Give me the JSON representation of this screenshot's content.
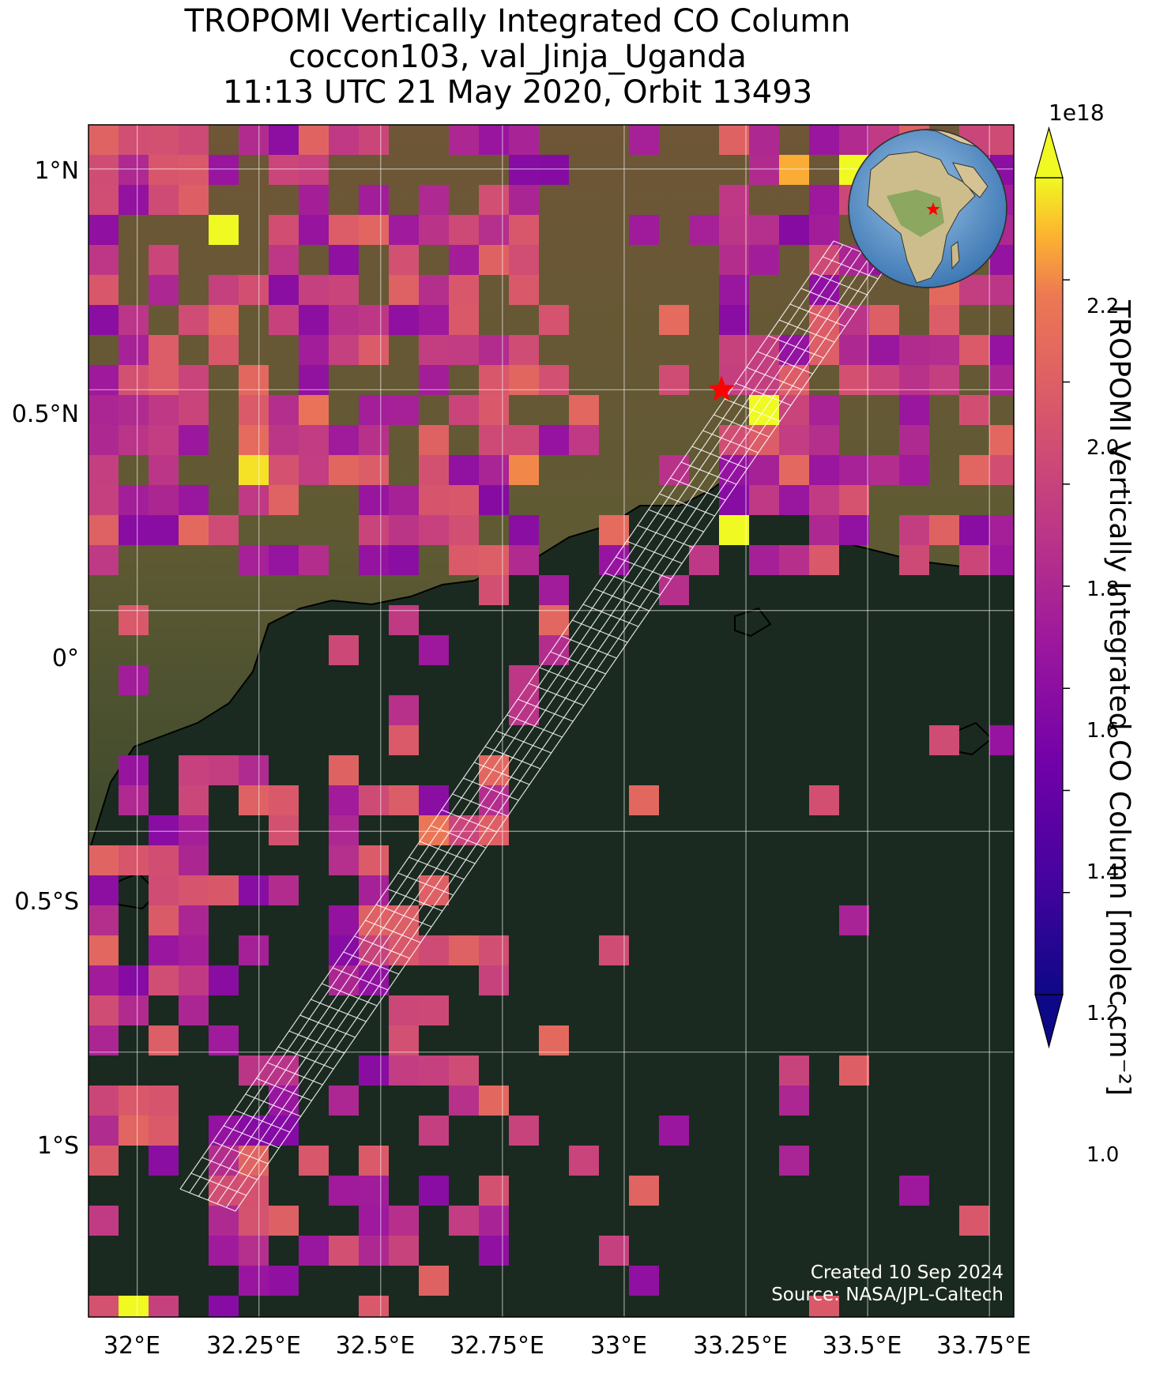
{
  "title": {
    "line1": "TROPOMI Vertically Integrated CO Column",
    "line2": "coccon103, val_Jinja_Uganda",
    "line3": "11:13 UTC 21 May 2020, Orbit 13493"
  },
  "map": {
    "lon_range": [
      31.9,
      33.8
    ],
    "lat_range": [
      -1.6,
      1.1
    ],
    "x_ticks": [
      "32°E",
      "32.25°E",
      "32.5°E",
      "32.75°E",
      "33°E",
      "33.25°E",
      "33.5°E",
      "33.75°E"
    ],
    "x_tick_values": [
      32.0,
      32.25,
      32.5,
      32.75,
      33.0,
      33.25,
      33.5,
      33.75
    ],
    "y_ticks": [
      "1°N",
      "0.5°N",
      "0°",
      "0.5°S",
      "1°S"
    ],
    "y_tick_values": [
      1.0,
      0.5,
      0.0,
      -0.5,
      -1.0
    ],
    "gridlines": true,
    "site_marker": {
      "lon": 33.2,
      "lat": 0.5,
      "symbol": "red-star"
    },
    "inset": "globe-inset",
    "inset_position": "top-right"
  },
  "colorbar": {
    "label": "TROPOMI Vertically Integrated CO Column [molec cm⁻²]",
    "exponent": "1e18",
    "range": [
      0.8,
      2.4
    ],
    "ticks": [
      "1.0",
      "1.2",
      "1.4",
      "1.6",
      "1.8",
      "2.0",
      "2.2"
    ],
    "tick_values": [
      1.0,
      1.2,
      1.4,
      1.6,
      1.8,
      2.0,
      2.2
    ],
    "colormap": "plasma",
    "extend": "both"
  },
  "footer": {
    "created": "Created 10 Sep 2024",
    "source": "Source: NASA/JPL-Caltech"
  }
}
